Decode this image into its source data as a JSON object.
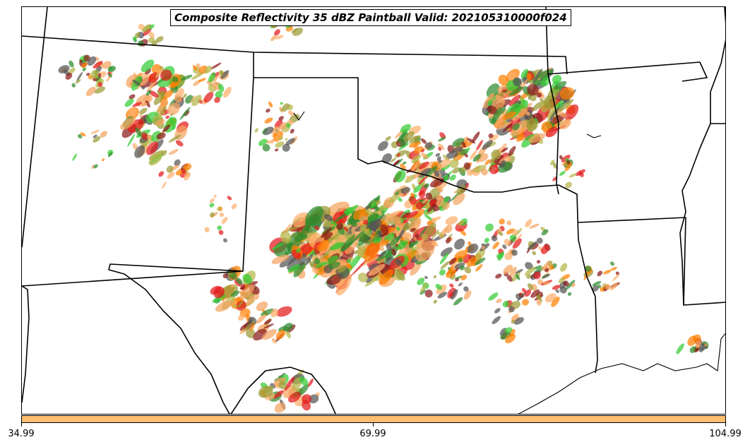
{
  "title": "Composite Reflectivity 35 dBZ Paintball Valid: 202105310000f024",
  "colorbar": {
    "color": "#fdbf6f",
    "ticks": [
      "34.99",
      "69.99",
      "104.99"
    ]
  },
  "member_colors": [
    "#e31a1c",
    "#ff7f00",
    "#33cc33",
    "#2e8b2e",
    "#9a9a33",
    "#8b1a1a",
    "#f4a460",
    "#555555",
    "#b5b54a",
    "#fdae6b"
  ]
}
